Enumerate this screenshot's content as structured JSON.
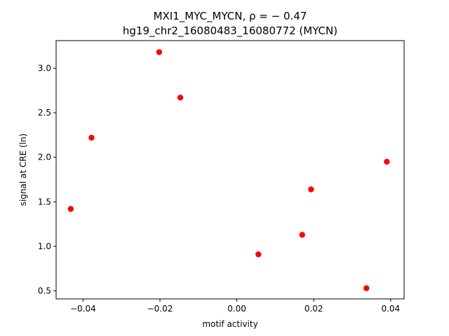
{
  "chart_data": {
    "type": "scatter",
    "title_line1": "MXI1_MYC_MYCN, ρ = − 0.47",
    "title_line2": "hg19_chr2_16080483_16080772 (MYCN)",
    "xlabel": "motif activity",
    "ylabel": "signal at CRE (ln)",
    "xlim": [
      -0.047,
      0.0435
    ],
    "ylim": [
      0.41,
      3.31
    ],
    "xticks": [
      -0.04,
      -0.02,
      0.0,
      0.02,
      0.04
    ],
    "xtick_labels": [
      "−0.04",
      "−0.02",
      "0.00",
      "0.02",
      "0.04"
    ],
    "yticks": [
      0.5,
      1.0,
      1.5,
      2.0,
      2.5,
      3.0
    ],
    "ytick_labels": [
      "0.5",
      "1.0",
      "1.5",
      "2.0",
      "2.5",
      "3.0"
    ],
    "grid": false,
    "marker_color": "#ff0000",
    "points": [
      {
        "x": -0.0432,
        "y": 1.42
      },
      {
        "x": -0.0378,
        "y": 2.22
      },
      {
        "x": -0.0202,
        "y": 3.18
      },
      {
        "x": -0.0147,
        "y": 2.67
      },
      {
        "x": 0.0056,
        "y": 0.91
      },
      {
        "x": 0.017,
        "y": 1.13
      },
      {
        "x": 0.0193,
        "y": 1.64
      },
      {
        "x": 0.0337,
        "y": 0.53
      },
      {
        "x": 0.039,
        "y": 1.95
      }
    ]
  }
}
